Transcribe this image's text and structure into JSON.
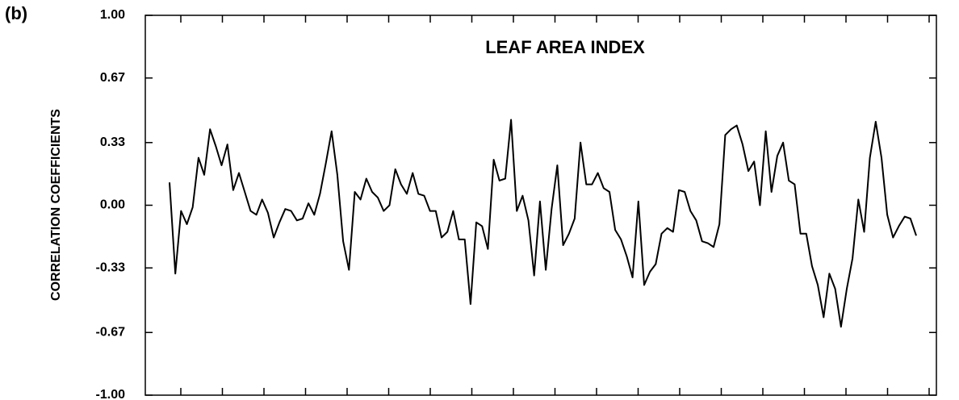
{
  "chart_data": {
    "type": "line",
    "panel_label": "(b)",
    "title": "LEAF AREA INDEX",
    "y_label": "CORRELATION COEFFICIENTS",
    "color": "#000000",
    "ylim": [
      -1,
      1
    ],
    "yticks": [
      {
        "value": -1,
        "label": "-1.00"
      },
      -0.67,
      -0.33,
      {
        "value": 0,
        "label": "0.00"
      },
      0.33,
      0.67,
      {
        "value": 1,
        "label": "1.00"
      }
    ],
    "values": [
      0.12,
      -0.36,
      -0.03,
      -0.1,
      -0.01,
      0.25,
      0.16,
      0.4,
      0.31,
      0.21,
      0.32,
      0.08,
      0.17,
      0.07,
      -0.03,
      -0.05,
      0.03,
      -0.04,
      -0.17,
      -0.09,
      -0.02,
      -0.03,
      -0.08,
      -0.07,
      0.01,
      -0.05,
      0.06,
      0.22,
      0.39,
      0.16,
      -0.19,
      -0.34,
      0.07,
      0.03,
      0.14,
      0.07,
      0.04,
      -0.03,
      0.0,
      0.19,
      0.11,
      0.06,
      0.17,
      0.06,
      0.05,
      -0.03,
      -0.03,
      -0.17,
      -0.14,
      -0.03,
      -0.18,
      -0.18,
      -0.52,
      -0.09,
      -0.11,
      -0.23,
      0.24,
      0.13,
      0.14,
      0.45,
      -0.03,
      0.05,
      -0.08,
      -0.37,
      0.02,
      -0.34,
      -0.02,
      0.21,
      -0.21,
      -0.15,
      -0.07,
      0.33,
      0.11,
      0.11,
      0.17,
      0.09,
      0.07,
      -0.13,
      -0.18,
      -0.27,
      -0.38,
      0.02,
      -0.42,
      -0.35,
      -0.31,
      -0.15,
      -0.12,
      -0.14,
      0.08,
      0.07,
      -0.03,
      -0.08,
      -0.19,
      -0.2,
      -0.22,
      -0.1,
      0.37,
      0.4,
      0.42,
      0.32,
      0.18,
      0.23,
      0.0,
      0.39,
      0.07,
      0.26,
      0.33,
      0.13,
      0.11,
      -0.15,
      -0.15,
      -0.32,
      -0.42,
      -0.59,
      -0.36,
      -0.44,
      -0.64,
      -0.44,
      -0.28,
      0.03,
      -0.14,
      0.25,
      0.44,
      0.25,
      -0.05,
      -0.17,
      -0.11,
      -0.06,
      -0.07,
      -0.16
    ]
  }
}
